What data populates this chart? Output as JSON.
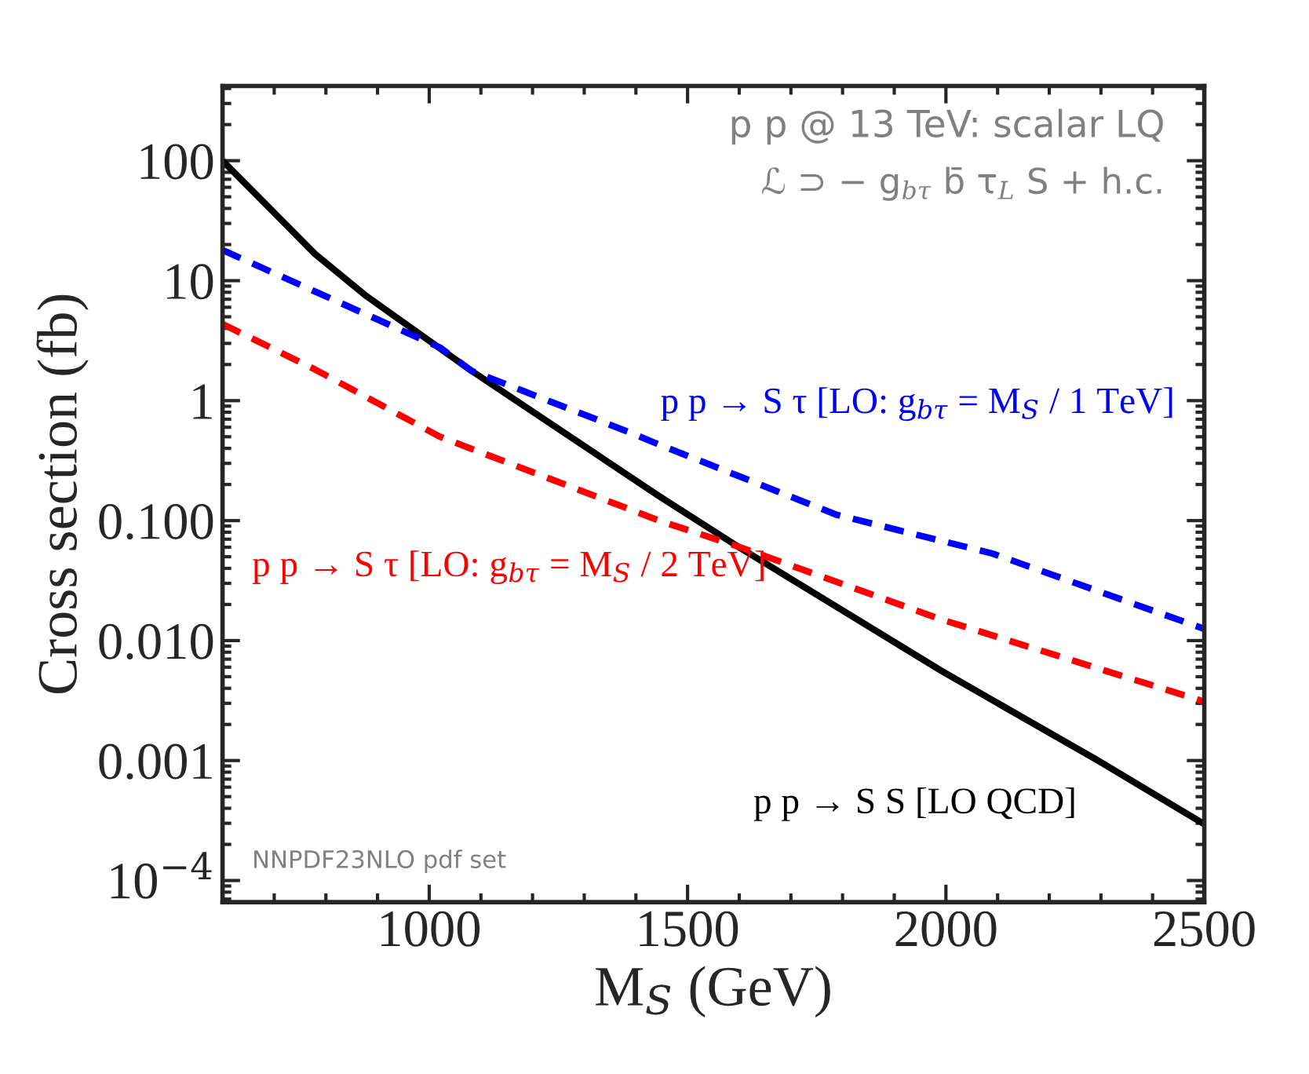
{
  "chart_data": {
    "type": "line",
    "xlabel": "M$_{S}$ (GeV)",
    "ylabel": "Cross section (fb)",
    "log": "y",
    "grid": false,
    "legend": false,
    "marker": "none",
    "xlim": [
      600,
      2500
    ],
    "xticks": [
      1000,
      1500,
      2000,
      2500
    ],
    "ylim": [
      6.6e-05,
      420
    ],
    "yticks": [
      100,
      10,
      1,
      {
        "value": 0.1,
        "label": "0.100"
      },
      {
        "value": 0.01,
        "label": "0.010"
      },
      0.001,
      {
        "value": 0.0001,
        "label": "10$^{−4}$"
      }
    ],
    "series": [
      {
        "name": "p p → S S [LO QCD]",
        "color": "#000000",
        "line_style": "solid",
        "x": [
          600,
          779,
          879,
          1082,
          1445,
          1597,
          1991,
          2294,
          2500
        ],
        "values": [
          100,
          16.7,
          7.4,
          1.77,
          0.16,
          0.061,
          0.0056,
          0.001,
          0.000295
        ]
      },
      {
        "name": "p p → S τ [LO: g$_{bτ}$ = M$_{S}$ / 1 TeV]",
        "color": "#0000ff",
        "line_style": "dashed",
        "x": [
          600,
          1021,
          1082,
          1385,
          1445,
          1788,
          2091,
          2500
        ],
        "values": [
          18,
          2.77,
          1.77,
          0.55,
          0.43,
          0.112,
          0.053,
          0.0125
        ]
      },
      {
        "name": "p p → S τ [LO: g$_{bτ}$ = M$_{S}$ / 2 TeV]",
        "color": "#ff0000",
        "line_style": "dashed",
        "x": [
          600,
          779,
          1021,
          1445,
          1597,
          1991,
          2500
        ],
        "values": [
          4.35,
          1.82,
          0.5,
          0.1,
          0.061,
          0.015,
          0.0031
        ]
      }
    ],
    "annotations": [
      "p p @ 13 TeV: scalar LQ",
      "ℒ ⊃ − g$_{bτ}$ b̄ τ$_{L}$ S + h.c.",
      "NNPDF23NLO pdf set"
    ]
  }
}
